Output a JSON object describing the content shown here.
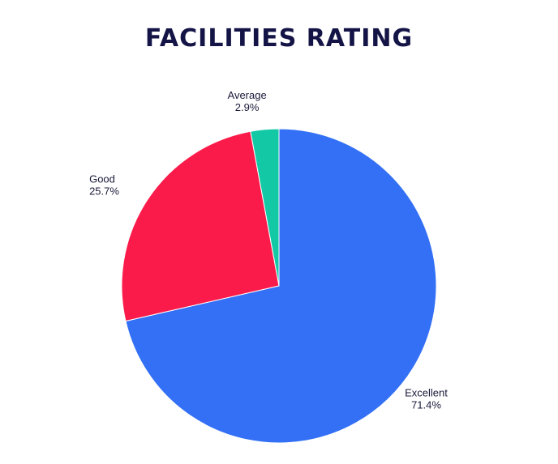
{
  "chart_data": {
    "type": "pie",
    "title": "FACILITIES RATING",
    "slices": [
      {
        "label": "Excellent",
        "value": 71.4,
        "pct_label": "71.4%",
        "color": "#3370f5",
        "label_side": "right"
      },
      {
        "label": "Good",
        "value": 25.7,
        "pct_label": "25.7%",
        "color": "#fb1b4a",
        "label_side": "left"
      },
      {
        "label": "Average",
        "value": 2.9,
        "pct_label": "2.9%",
        "color": "#13c9a5",
        "label_side": "center"
      }
    ],
    "legend": "none"
  }
}
